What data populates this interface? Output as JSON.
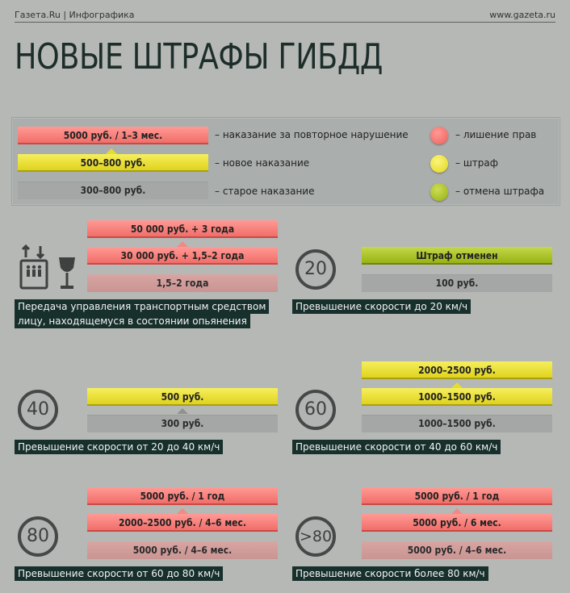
{
  "header": {
    "source": "Газета.Ru | Инфографика",
    "url": "www.gazeta.ru"
  },
  "title": "НОВЫЕ ШТРАФЫ ГИБДД",
  "legend": {
    "bar_red": "5000 руб.  /  1–3 мес.",
    "bar_yellow": "500–800 руб.",
    "bar_grey": "300–800 руб.",
    "text_red": "– наказание за повторное нарушение",
    "text_yellow": "– новое наказание",
    "text_grey": "– старое наказание",
    "dot_red": "– лишение прав",
    "dot_yellow": "– штраф",
    "dot_green": "– отмена штрафа",
    "colors": {
      "red": "#f2706b",
      "yellow": "#e6dc2c",
      "green": "#a7c11f"
    }
  },
  "items": {
    "drunk": {
      "red_top": "50 000 руб.  +  3 года",
      "red": "30 000 руб.  +  1,5–2 года",
      "old": "1,5–2 года",
      "caption_1": "Передача управления транспортным средством",
      "caption_2": "лицу, находящемуся в состоянии опьянения"
    },
    "speed20": {
      "sign": "20",
      "green": "Штраф отменен",
      "old": "100 руб.",
      "caption": "Превышение скорости до 20 км/ч"
    },
    "speed40": {
      "sign": "40",
      "yellow": "500 руб.",
      "old": "300 руб.",
      "caption": "Превышение скорости от 20 до 40 км/ч"
    },
    "speed60": {
      "sign": "60",
      "yellow_top": "2000–2500 руб.",
      "yellow": "1000–1500 руб.",
      "old": "1000–1500 руб.",
      "caption": "Превышение скорости от 40 до 60 км/ч"
    },
    "speed80": {
      "sign": "80",
      "red_top": "5000 руб.  /  1 год",
      "red": "2000–2500 руб.  /  4–6 мес.",
      "old": "5000 руб.  /  4–6 мес.",
      "caption": "Превышение скорости от 60 до 80 км/ч"
    },
    "speed80plus": {
      "sign": ">80",
      "red_top": "5000 руб.  /  1 год",
      "red": "5000 руб.  /  6 мес.",
      "old": "5000 руб.  /  4–6 мес.",
      "caption": "Превышение скорости более 80 км/ч"
    }
  }
}
